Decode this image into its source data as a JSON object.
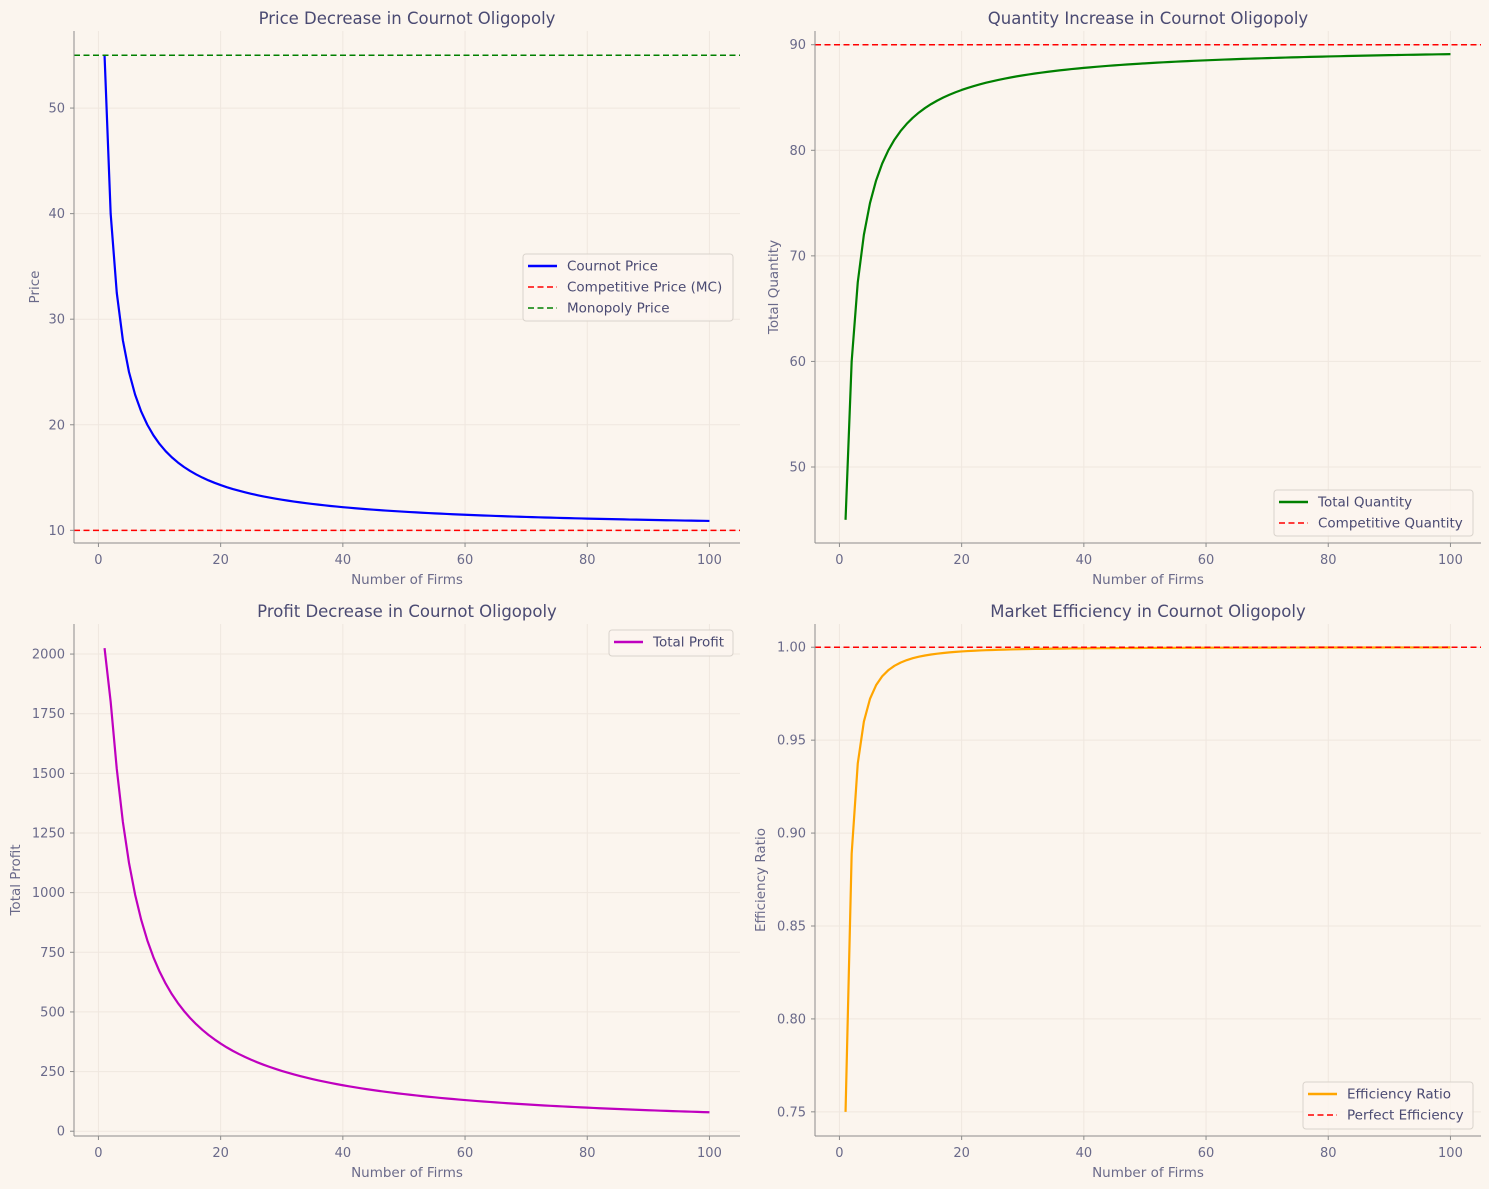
{
  "figure": {
    "background": "#fbf5ee",
    "axes_color": "#8c8c8c",
    "grid_color": "#efe7df",
    "text_color": "#4a4a72",
    "tick_color": "#6a6a8a"
  },
  "chart_data": [
    {
      "type": "line",
      "title": "Price Decrease in Cournot Oligopoly",
      "xlabel": "Number of Firms",
      "ylabel": "Price",
      "xlim": [
        -4,
        105
      ],
      "ylim": [
        8.8,
        57.3
      ],
      "xticks": [
        0,
        20,
        40,
        60,
        80,
        100
      ],
      "yticks": [
        10,
        20,
        30,
        40,
        50
      ],
      "grid": true,
      "legend": "center-right",
      "formula": "price = 10 + 90/(n+1)",
      "x": {
        "start": 1,
        "end": 100,
        "step": 1
      },
      "series": [
        {
          "name": "Cournot Price",
          "color": "#0000ff",
          "style": "solid",
          "values_at": {
            "1": 55.0,
            "2": 40.0,
            "3": 32.5,
            "5": 25.0,
            "10": 18.18,
            "20": 14.29,
            "40": 12.2,
            "60": 11.48,
            "80": 11.11,
            "100": 10.89
          }
        },
        {
          "name": "Competitive Price (MC)",
          "color": "#ff0000",
          "style": "dashed",
          "hline": 10
        },
        {
          "name": "Monopoly Price",
          "color": "#008000",
          "style": "dashed",
          "hline": 55
        }
      ]
    },
    {
      "type": "line",
      "title": "Quantity Increase in Cournot Oligopoly",
      "xlabel": "Number of Firms",
      "ylabel": "Total Quantity",
      "xlim": [
        -4,
        105
      ],
      "ylim": [
        42.8,
        91.3
      ],
      "xticks": [
        0,
        20,
        40,
        60,
        80,
        100
      ],
      "yticks": [
        50,
        60,
        70,
        80,
        90
      ],
      "grid": true,
      "legend": "lower-right",
      "formula": "quantity = 90*n/(n+1)",
      "x": {
        "start": 1,
        "end": 100,
        "step": 1
      },
      "series": [
        {
          "name": "Total Quantity",
          "color": "#008000",
          "style": "solid",
          "values_at": {
            "1": 45.0,
            "2": 60.0,
            "3": 67.5,
            "5": 75.0,
            "10": 81.82,
            "20": 85.71,
            "40": 87.8,
            "60": 88.52,
            "80": 88.89,
            "100": 89.11
          }
        },
        {
          "name": "Competitive Quantity",
          "color": "#ff0000",
          "style": "dashed",
          "hline": 90
        }
      ]
    },
    {
      "type": "line",
      "title": "Profit Decrease in Cournot Oligopoly",
      "xlabel": "Number of Firms",
      "ylabel": "Total Profit",
      "xlim": [
        -4,
        105
      ],
      "ylim": [
        -20,
        2126
      ],
      "xticks": [
        0,
        20,
        40,
        60,
        80,
        100
      ],
      "yticks": [
        0,
        250,
        500,
        750,
        1000,
        1250,
        1500,
        1750,
        2000
      ],
      "grid": true,
      "legend": "upper-right",
      "formula": "profit = 8100*n/(n+1)^2",
      "x": {
        "start": 1,
        "end": 100,
        "step": 1
      },
      "series": [
        {
          "name": "Total Profit",
          "color": "#bf00bf",
          "style": "solid",
          "values_at": {
            "1": 2025,
            "2": 1800,
            "3": 1518.75,
            "5": 1125,
            "10": 669.4,
            "20": 367.3,
            "40": 192.7,
            "60": 130.6,
            "80": 98.8,
            "100": 79.4
          }
        }
      ]
    },
    {
      "type": "line",
      "title": "Market Efficiency in Cournot Oligopoly",
      "xlabel": "Number of Firms",
      "ylabel": "Efficiency Ratio",
      "xlim": [
        -4,
        105
      ],
      "ylim": [
        0.737,
        1.0125
      ],
      "xticks": [
        0,
        20,
        40,
        60,
        80,
        100
      ],
      "yticks": [
        0.75,
        0.8,
        0.85,
        0.9,
        0.95,
        1.0
      ],
      "yticklabels": [
        "0.75",
        "0.80",
        "0.85",
        "0.90",
        "0.95",
        "1.00"
      ],
      "grid": true,
      "legend": "lower-right",
      "formula": "efficiency = 1 - 1/(n+1)^2",
      "x": {
        "start": 1,
        "end": 100,
        "step": 1
      },
      "series": [
        {
          "name": "Efficiency Ratio",
          "color": "#ffa500",
          "style": "solid",
          "values_at": {
            "1": 0.75,
            "2": 0.889,
            "3": 0.9375,
            "5": 0.972,
            "10": 0.992,
            "20": 0.998,
            "100": 0.9999
          }
        },
        {
          "name": "Perfect Efficiency",
          "color": "#ff0000",
          "style": "dashed",
          "hline": 1.0
        }
      ]
    }
  ]
}
